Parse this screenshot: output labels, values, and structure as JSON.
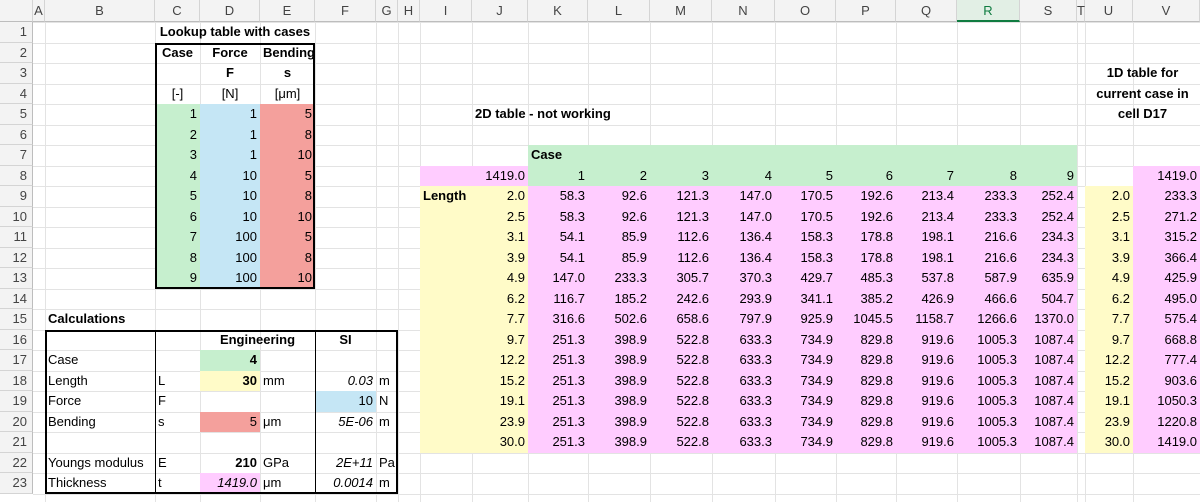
{
  "columns": [
    "A",
    "B",
    "C",
    "D",
    "E",
    "F",
    "G",
    "H",
    "I",
    "J",
    "K",
    "L",
    "M",
    "N",
    "O",
    "P",
    "Q",
    "R",
    "S",
    "T",
    "U",
    "V"
  ],
  "rows": [
    "1",
    "2",
    "3",
    "4",
    "5",
    "6",
    "7",
    "8",
    "9",
    "10",
    "11",
    "12",
    "13",
    "14",
    "15",
    "16",
    "17",
    "18",
    "19",
    "20",
    "21",
    "22",
    "23"
  ],
  "lookup": {
    "title": "Lookup table with cases",
    "headers": {
      "case": "Case",
      "force": "Force",
      "bending": "Bending",
      "force_sym": "F",
      "bending_sym": "s",
      "case_unit": "[-]",
      "force_unit": "[N]",
      "bending_unit": "[μm]"
    },
    "case": [
      "1",
      "2",
      "3",
      "4",
      "5",
      "6",
      "7",
      "8",
      "9"
    ],
    "force": [
      "1",
      "1",
      "1",
      "10",
      "10",
      "10",
      "100",
      "100",
      "100"
    ],
    "bending": [
      "5",
      "8",
      "10",
      "5",
      "8",
      "10",
      "5",
      "8",
      "10"
    ]
  },
  "calc": {
    "title": "Calculations",
    "hdr_eng": "Engineering",
    "hdr_si": "SI",
    "rows": [
      {
        "label": "Case",
        "sym": "",
        "eng": "4",
        "eng_unit": "",
        "si": "",
        "si_unit": ""
      },
      {
        "label": "Length",
        "sym": "L",
        "eng": "30",
        "eng_unit": "mm",
        "si": "0.03",
        "si_unit": "m"
      },
      {
        "label": "Force",
        "sym": "F",
        "eng": "",
        "eng_unit": "",
        "si": "10",
        "si_unit": "N"
      },
      {
        "label": "Bending",
        "sym": "s",
        "eng": "5",
        "eng_unit": "μm",
        "si": "5E-06",
        "si_unit": "m"
      },
      {
        "label": "",
        "sym": "",
        "eng": "",
        "eng_unit": "",
        "si": "",
        "si_unit": ""
      },
      {
        "label": "Youngs modulus",
        "sym": "E",
        "eng": "210",
        "eng_unit": "GPa",
        "si": "2E+11",
        "si_unit": "Pa"
      },
      {
        "label": "Thickness",
        "sym": "t",
        "eng": "1419.0",
        "eng_unit": "μm",
        "si": "0.0014",
        "si_unit": "m"
      }
    ]
  },
  "table2d": {
    "title": "2D table - not working",
    "case_label": "Case",
    "corner": "1419.0",
    "length_label": "Length",
    "cases": [
      "1",
      "2",
      "3",
      "4",
      "5",
      "6",
      "7",
      "8",
      "9"
    ],
    "lengths": [
      "2.0",
      "2.5",
      "3.1",
      "3.9",
      "4.9",
      "6.2",
      "7.7",
      "9.7",
      "12.2",
      "15.2",
      "19.1",
      "23.9",
      "30.0"
    ],
    "values": [
      [
        "58.3",
        "92.6",
        "121.3",
        "147.0",
        "170.5",
        "192.6",
        "213.4",
        "233.3",
        "252.4"
      ],
      [
        "58.3",
        "92.6",
        "121.3",
        "147.0",
        "170.5",
        "192.6",
        "213.4",
        "233.3",
        "252.4"
      ],
      [
        "54.1",
        "85.9",
        "112.6",
        "136.4",
        "158.3",
        "178.8",
        "198.1",
        "216.6",
        "234.3"
      ],
      [
        "54.1",
        "85.9",
        "112.6",
        "136.4",
        "158.3",
        "178.8",
        "198.1",
        "216.6",
        "234.3"
      ],
      [
        "147.0",
        "233.3",
        "305.7",
        "370.3",
        "429.7",
        "485.3",
        "537.8",
        "587.9",
        "635.9"
      ],
      [
        "116.7",
        "185.2",
        "242.6",
        "293.9",
        "341.1",
        "385.2",
        "426.9",
        "466.6",
        "504.7"
      ],
      [
        "316.6",
        "502.6",
        "658.6",
        "797.9",
        "925.9",
        "1045.5",
        "1158.7",
        "1266.6",
        "1370.0"
      ],
      [
        "251.3",
        "398.9",
        "522.8",
        "633.3",
        "734.9",
        "829.8",
        "919.6",
        "1005.3",
        "1087.4"
      ],
      [
        "251.3",
        "398.9",
        "522.8",
        "633.3",
        "734.9",
        "829.8",
        "919.6",
        "1005.3",
        "1087.4"
      ],
      [
        "251.3",
        "398.9",
        "522.8",
        "633.3",
        "734.9",
        "829.8",
        "919.6",
        "1005.3",
        "1087.4"
      ],
      [
        "251.3",
        "398.9",
        "522.8",
        "633.3",
        "734.9",
        "829.8",
        "919.6",
        "1005.3",
        "1087.4"
      ],
      [
        "251.3",
        "398.9",
        "522.8",
        "633.3",
        "734.9",
        "829.8",
        "919.6",
        "1005.3",
        "1087.4"
      ],
      [
        "251.3",
        "398.9",
        "522.8",
        "633.3",
        "734.9",
        "829.8",
        "919.6",
        "1005.3",
        "1087.4"
      ]
    ]
  },
  "table1d": {
    "title_lines": [
      "1D table for",
      "current case in",
      "cell D17"
    ],
    "corner": "1419.0",
    "lengths": [
      "2.0",
      "2.5",
      "3.1",
      "3.9",
      "4.9",
      "6.2",
      "7.7",
      "9.7",
      "12.2",
      "15.2",
      "19.1",
      "23.9",
      "30.0"
    ],
    "values": [
      "233.3",
      "271.2",
      "315.2",
      "366.4",
      "425.9",
      "495.0",
      "575.4",
      "668.8",
      "777.4",
      "903.6",
      "1050.3",
      "1220.8",
      "1419.0"
    ]
  },
  "colors": {
    "green": "#c6efce",
    "blue": "#c5e6f5",
    "red": "#f4a09c",
    "yellow": "#fffbc8",
    "pink": "#ffccff",
    "header_bg": "#f3f3f3",
    "selected_header": "#107c41"
  }
}
